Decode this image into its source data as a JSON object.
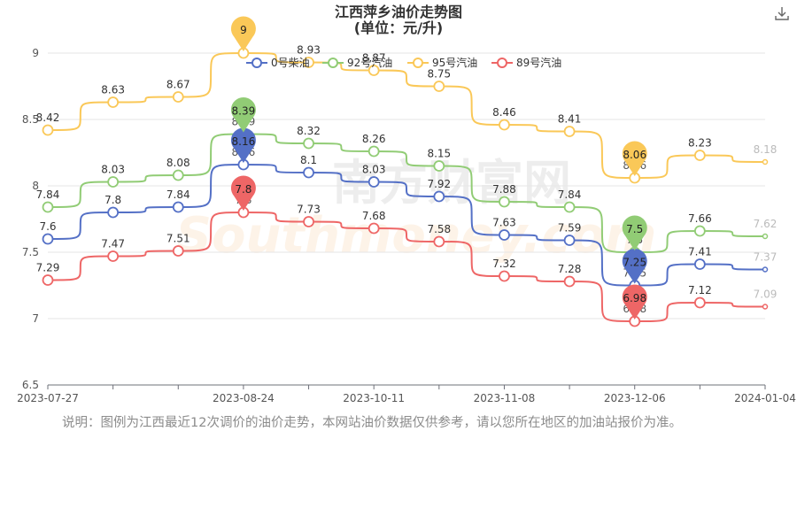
{
  "title_line1": "江西萍乡油价走势图",
  "title_line2": "(单位：元/升)",
  "note": "说明：图例为江西最近12次调价的油价走势，本网站油价数据仅供参考，请以您所在地区的加油站报价为准。",
  "watermark_cn": "南方财富网",
  "watermark_en": "Southmoney.com",
  "toolbar": {
    "download_icon": "download-icon"
  },
  "chart_data": {
    "type": "line",
    "title": "江西萍乡油价走势图",
    "subtitle": "(单位：元/升)",
    "ylim": [
      6.5,
      9
    ],
    "yticks": [
      "6.5",
      "7",
      "7.5",
      "8",
      "8.5",
      "9"
    ],
    "xticks": [
      "2023-07-27",
      "2023-08-24",
      "2023-10-11",
      "2023-11-08",
      "2023-12-06",
      "2024-01-04"
    ],
    "xtick_index": [
      0,
      3,
      5,
      7,
      9,
      11
    ],
    "legend_position": "top-center",
    "grid": "horizontal",
    "series": [
      {
        "name": "0号柴油",
        "color": "#5470c6",
        "values": [
          7.6,
          7.8,
          7.84,
          8.16,
          8.1,
          8.03,
          7.92,
          7.63,
          7.59,
          7.25,
          7.41,
          7.37
        ],
        "max_index": 3,
        "min_index": 9
      },
      {
        "name": "92号汽油",
        "color": "#91cc75",
        "values": [
          7.84,
          8.03,
          8.08,
          8.39,
          8.32,
          8.26,
          8.15,
          7.88,
          7.84,
          7.5,
          7.66,
          7.62
        ],
        "max_index": 3,
        "min_index": 9
      },
      {
        "name": "95号汽油",
        "color": "#fac858",
        "values": [
          8.42,
          8.63,
          8.67,
          9,
          8.93,
          8.87,
          8.75,
          8.46,
          8.41,
          8.06,
          8.23,
          8.18
        ],
        "max_index": 3,
        "min_index": 9
      },
      {
        "name": "89号汽油",
        "color": "#ee6666",
        "values": [
          7.29,
          7.47,
          7.51,
          7.8,
          7.73,
          7.68,
          7.58,
          7.32,
          7.28,
          6.98,
          7.12,
          7.09
        ],
        "max_index": 3,
        "min_index": 9
      }
    ]
  }
}
